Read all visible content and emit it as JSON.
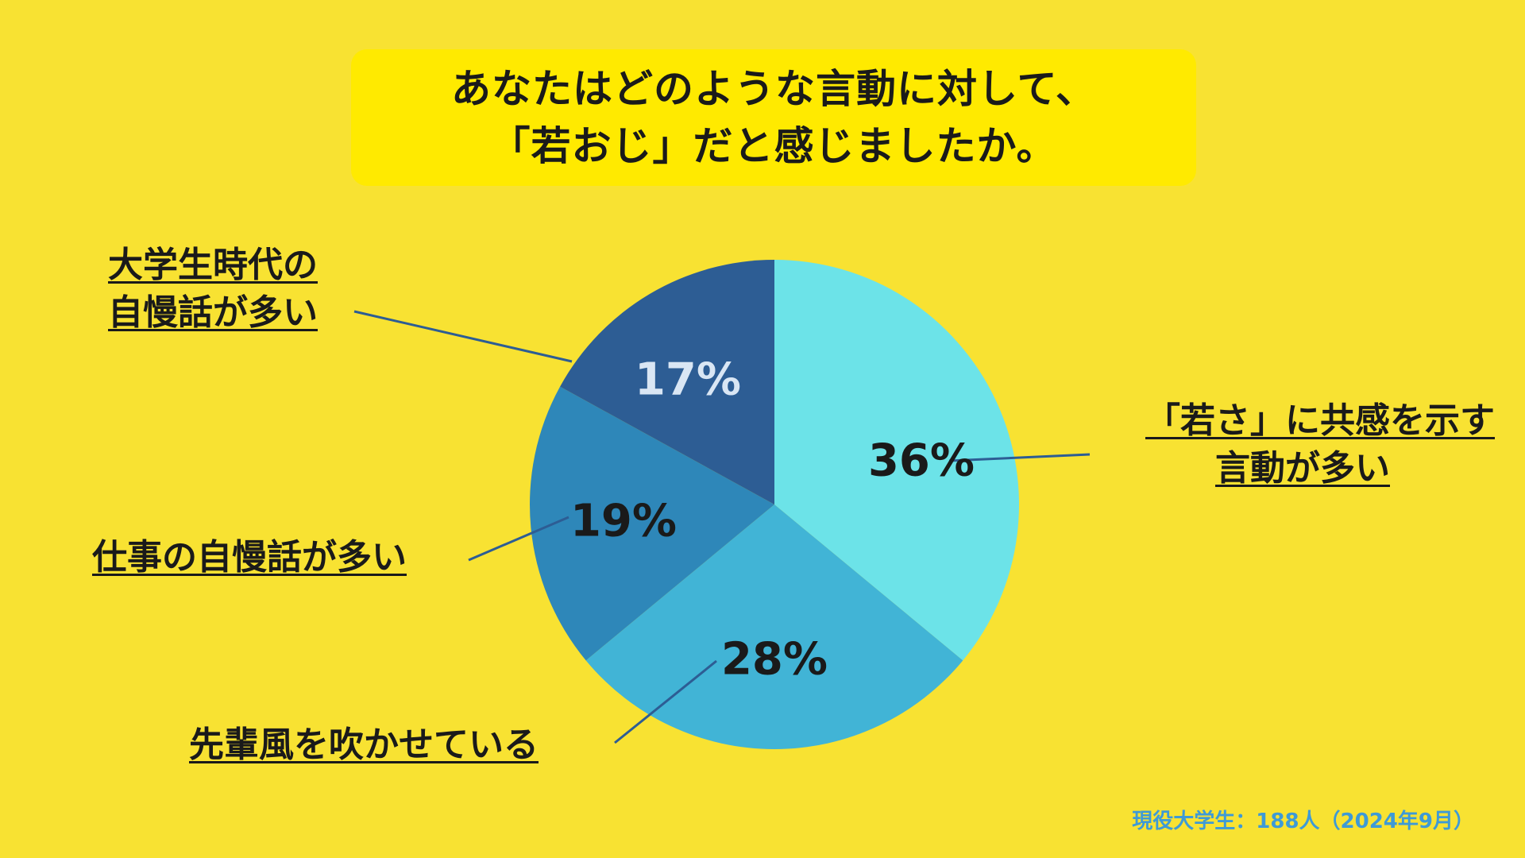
{
  "title": {
    "line1": "あなたはどのような言動に対して、",
    "line2": "「若おじ」だと感じましたか。"
  },
  "labels": {
    "wakasa": [
      "「若さ」に共感を示す",
      "言動が多い"
    ],
    "senpai": [
      "先輩風を吹かせている"
    ],
    "shigoto": [
      "仕事の自慢話が多い"
    ],
    "daigaku": [
      "大学生時代の",
      "自慢話が多い"
    ]
  },
  "source": "現役大学生：188人（2024年9月）",
  "chart_data": {
    "type": "pie",
    "start_angle_deg": 0,
    "direction": "clockwise",
    "slices": [
      {
        "name": "「若さ」に共感を示す言動が多い",
        "value": 36,
        "label": "36%",
        "color": "#6CE3E8",
        "label_color": "#1a1a1a"
      },
      {
        "name": "先輩風を吹かせている",
        "value": 28,
        "label": "28%",
        "color": "#41B4D6",
        "label_color": "#1a1a1a"
      },
      {
        "name": "仕事の自慢話が多い",
        "value": 19,
        "label": "19%",
        "color": "#2E87B9",
        "label_color": "#1a1a1a"
      },
      {
        "name": "大学生時代の自慢話が多い",
        "value": 17,
        "label": "17%",
        "color": "#2D5D94",
        "label_color": "#D9E6F4"
      }
    ]
  }
}
